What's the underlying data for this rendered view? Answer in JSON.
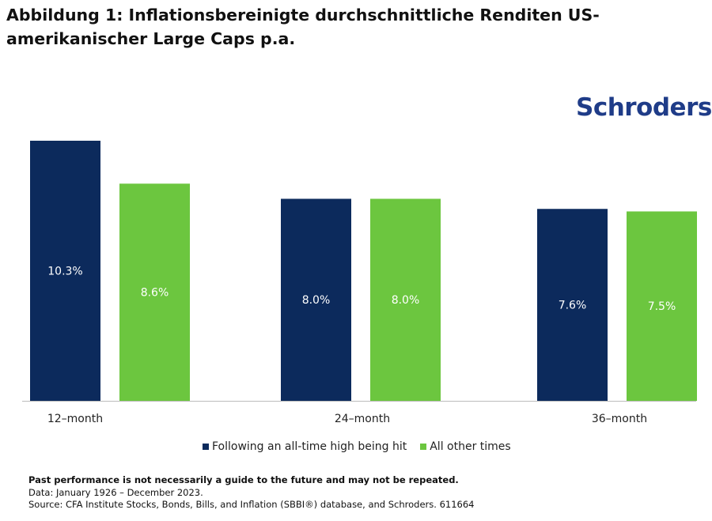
{
  "title": "Abbildung 1: Inflationsbereinigte durchschnittliche Renditen US-amerikanischer Large Caps p.a.",
  "logo": "Schroders",
  "colors": {
    "navy": "#0c2a5c",
    "green": "#6cc63f",
    "logo": "#1f3c88",
    "axis": "#bdbdbd"
  },
  "chart_data": {
    "type": "bar",
    "categories": [
      "12–month",
      "24–month",
      "36–month"
    ],
    "series": [
      {
        "name": "Following an all-time high being hit",
        "values": [
          10.3,
          8.0,
          7.6
        ],
        "labels": [
          "10.3%",
          "8.0%",
          "7.6%"
        ]
      },
      {
        "name": "All other times",
        "values": [
          8.6,
          8.0,
          7.5
        ],
        "labels": [
          "8.6%",
          "8.0%",
          "7.5%"
        ]
      }
    ],
    "ylim": [
      0,
      10.3
    ],
    "grid": false,
    "legend_position": "bottom",
    "data_labels": "inside-center"
  },
  "legend": [
    {
      "label": "Following an all-time high being hit",
      "color": "#0c2a5c"
    },
    {
      "label": "All other times",
      "color": "#6cc63f"
    }
  ],
  "footer": {
    "disclaimer": "Past performance is not necessarily a guide to the future and may not be repeated.",
    "data": "Data: January 1926 – December 2023.",
    "source": "Source: CFA Institute Stocks, Bonds, Bills, and Inflation (SBBI®) database, and Schroders. 611664"
  }
}
